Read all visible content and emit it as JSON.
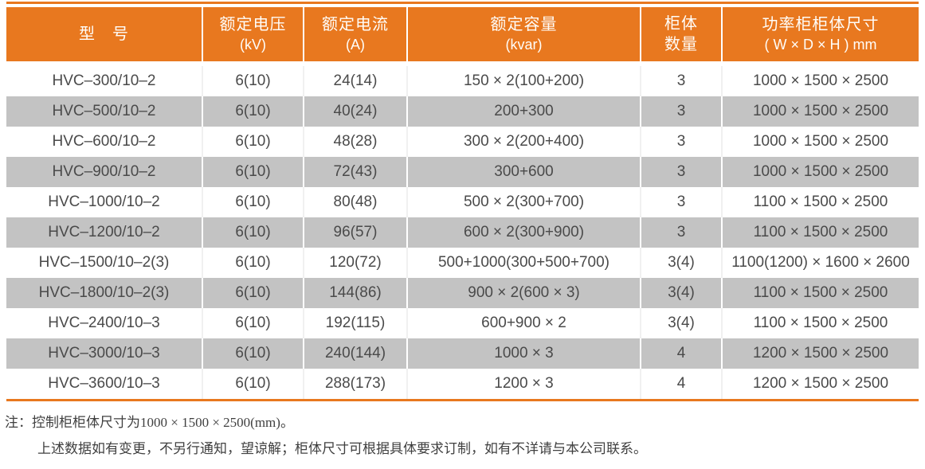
{
  "colors": {
    "accent_orange": "#e8781f",
    "row_alt_gray": "#c3c3c3",
    "body_text": "#4a4a4a",
    "header_text": "#ffffff"
  },
  "table": {
    "columns": [
      {
        "line1": "型　号",
        "line2": ""
      },
      {
        "line1": "额定电压",
        "line2": "(kV)"
      },
      {
        "line1": "额定电流",
        "line2": "(A)"
      },
      {
        "line1": "额定容量",
        "line2": "(kvar)"
      },
      {
        "line1": "柜体",
        "line2": "数量"
      },
      {
        "line1": "功率柜柜体尺寸",
        "line2": "( W × D × H ) mm"
      }
    ],
    "rows": [
      [
        "HVC–300/10–2",
        "6(10)",
        "24(14)",
        "150 × 2(100+200)",
        "3",
        "1000 × 1500 × 2500"
      ],
      [
        "HVC–500/10–2",
        "6(10)",
        "40(24)",
        "200+300",
        "3",
        "1000 × 1500 × 2500"
      ],
      [
        "HVC–600/10–2",
        "6(10)",
        "48(28)",
        "300 × 2(200+400)",
        "3",
        "1000 × 1500 × 2500"
      ],
      [
        "HVC–900/10–2",
        "6(10)",
        "72(43)",
        "300+600",
        "3",
        "1000 × 1500 × 2500"
      ],
      [
        "HVC–1000/10–2",
        "6(10)",
        "80(48)",
        "500 × 2(300+700)",
        "3",
        "1100 × 1500 × 2500"
      ],
      [
        "HVC–1200/10–2",
        "6(10)",
        "96(57)",
        "600 × 2(300+900)",
        "3",
        "1100 × 1500 × 2500"
      ],
      [
        "HVC–1500/10–2(3)",
        "6(10)",
        "120(72)",
        "500+1000(300+500+700)",
        "3(4)",
        "1100(1200) × 1600 × 2600"
      ],
      [
        "HVC–1800/10–2(3)",
        "6(10)",
        "144(86)",
        "900 × 2(600 × 3)",
        "3(4)",
        "1100 × 1500 × 2500"
      ],
      [
        "HVC–2400/10–3",
        "6(10)",
        "192(115)",
        "600+900 × 2",
        "3(4)",
        "1100 × 1500 × 2500"
      ],
      [
        "HVC–3000/10–3",
        "6(10)",
        "240(144)",
        "1000 × 3",
        "4",
        "1200 × 1500 × 2500"
      ],
      [
        "HVC–3600/10–3",
        "6(10)",
        "288(173)",
        "1200 × 3",
        "4",
        "1200 × 1500 × 2500"
      ]
    ]
  },
  "notes": {
    "prefix": "注：",
    "line1": "控制柜柜体尺寸为1000 × 1500 × 2500(mm)。",
    "line2": "上述数据如有变更，不另行通知，望谅解；柜体尺寸可根据具体要求订制，如有不详请与本公司联系。"
  }
}
